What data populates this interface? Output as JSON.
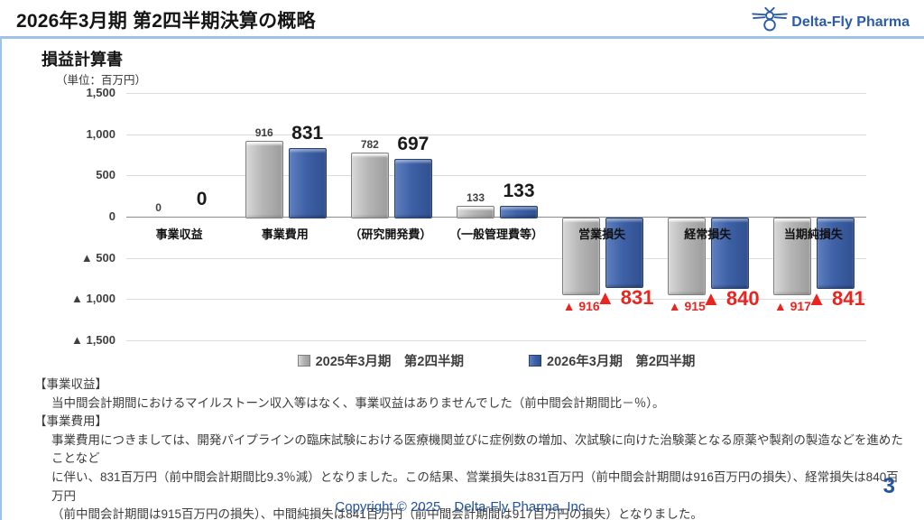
{
  "header": {
    "title": "2026年3月期 第2四半期決算の概略",
    "logo_text": "Delta-Fly Pharma"
  },
  "chart": {
    "title": "損益計算書",
    "unit_label": "（単位：百万円）"
  },
  "chart_data": {
    "type": "bar",
    "categories": [
      "事業収益",
      "事業費用",
      "（研究開発費）",
      "（一般管理費等）",
      "営業損失",
      "経常損失",
      "当期純損失"
    ],
    "series": [
      {
        "name": "2025年3月期　第2四半期",
        "color": "#ababab",
        "values": [
          0,
          916,
          782,
          133,
          -916,
          -915,
          -917
        ],
        "labels": [
          "0",
          "916",
          "782",
          "133",
          "▲ 916",
          "▲ 915",
          "▲ 917"
        ]
      },
      {
        "name": "2026年3月期　第2四半期",
        "color": "#3e61a7",
        "values": [
          0,
          831,
          697,
          133,
          -831,
          -840,
          -841
        ],
        "labels": [
          "0",
          "831",
          "697",
          "133",
          "▲ 831",
          "▲ 840",
          "▲ 841"
        ]
      }
    ],
    "title": "損益計算書",
    "xlabel": "",
    "ylabel": "（単位：百万円）",
    "ylim": [
      -1500,
      1500
    ],
    "ytick_interval": 500,
    "ytick_labels": [
      "1,500",
      "1,000",
      "500",
      "0",
      "▲ 500",
      "▲ 1,000",
      "▲ 1,500"
    ],
    "grid": true,
    "legend_position": "bottom",
    "negative_value_color": "#e8251f",
    "gridline_color": "#dcdcdc"
  },
  "notes": {
    "lines": [
      {
        "text": "【事業収益】",
        "indent": false
      },
      {
        "text": "当中間会計期間におけるマイルストーン収入等はなく、事業収益はありませんでした（前中間会計期間比－％）。",
        "indent": true
      },
      {
        "text": "【事業費用】",
        "indent": false
      },
      {
        "text": "事業費用につきましては、開発パイプラインの臨床試験における医療機関並びに症例数の増加、次試験に向けた治験薬となる原薬や製剤の製造などを進めたことなど",
        "indent": true
      },
      {
        "text": "に伴い、831百万円（前中間会計期間比9.3％減）となりました。この結果、営業損失は831百万円（前中間会計期間は916百万円の損失）、経常損失は840百万円",
        "indent": true
      },
      {
        "text": "（前中間会計期間は915百万円の損失）、中間純損失は841百万円（前中間会計期間は917百万円の損失）となりました。",
        "indent": true
      }
    ]
  },
  "footer": {
    "copyright": "Copyright © 2025　Delta-Fly Pharma, Inc.",
    "page_number": "3"
  }
}
